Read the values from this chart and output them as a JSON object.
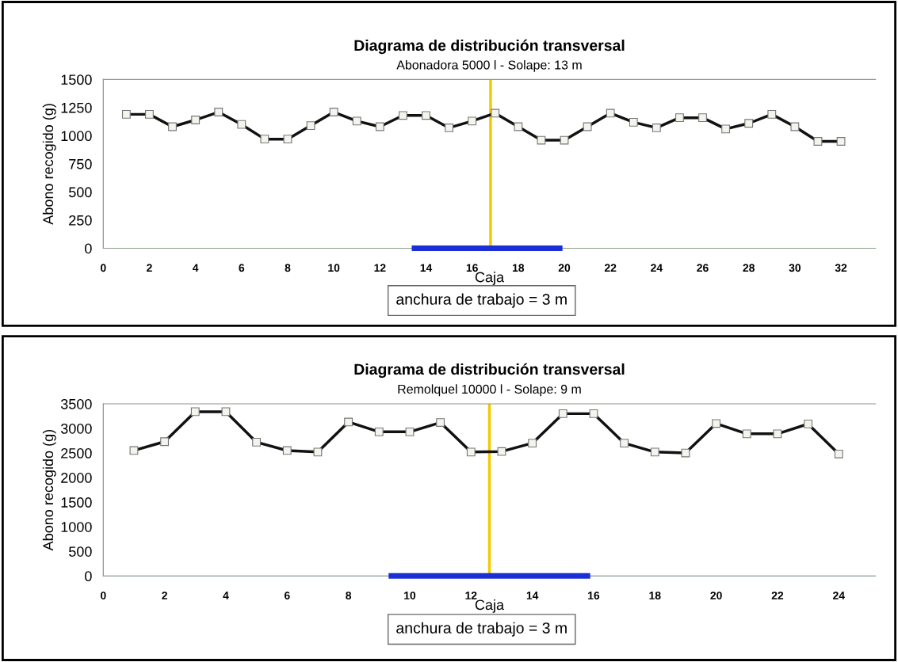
{
  "chart_data": [
    {
      "type": "line",
      "title": "Diagrama de distribución transversal",
      "subtitle": "Abonadora 5000 l - Solape: 13 m",
      "xlabel": "Caja",
      "ylabel": "Abono recogido (g)",
      "x": [
        1,
        2,
        3,
        4,
        5,
        6,
        7,
        8,
        9,
        10,
        11,
        12,
        13,
        14,
        15,
        16,
        17,
        18,
        19,
        20,
        21,
        22,
        23,
        24,
        25,
        26,
        27,
        28,
        29,
        30,
        31,
        32
      ],
      "series": [
        {
          "color": "#111111",
          "values": [
            1190,
            1190,
            1080,
            1140,
            1210,
            1100,
            970,
            970,
            1090,
            1210,
            1130,
            1080,
            1180,
            1180,
            1070,
            1130,
            1200,
            1080,
            960,
            960,
            1080,
            1200,
            1120,
            1070,
            1160,
            1160,
            1060,
            1110,
            1190,
            1080,
            950,
            950
          ]
        },
        {
          "type": "line",
          "x": [
            13.5,
            19.8
          ],
          "values": [
            0,
            0
          ],
          "color": "#1a2fd6",
          "marker": "none"
        }
      ],
      "marker": "square",
      "xlim": [
        0,
        33.5
      ],
      "xticks": [
        0,
        2,
        4,
        6,
        8,
        10,
        12,
        14,
        16,
        18,
        20,
        22,
        24,
        26,
        28,
        30,
        32
      ],
      "ylim": [
        0,
        1500
      ],
      "yticks": [
        0,
        250,
        500,
        750,
        1000,
        1250,
        1500
      ],
      "ref_lines": [
        {
          "axis": "x",
          "value": 16.8,
          "color": "#f5c800"
        }
      ],
      "annotations": [
        "anchura de trabajo = 3 m"
      ]
    },
    {
      "type": "line",
      "title": "Diagrama de distribución transversal",
      "subtitle": "Remolquel 10000 l - Solape: 9 m",
      "xlabel": "Caja",
      "ylabel": "Abono recogido (g)",
      "x": [
        1,
        2,
        3,
        4,
        5,
        6,
        7,
        8,
        9,
        10,
        11,
        12,
        13,
        14,
        15,
        16,
        17,
        18,
        19,
        20,
        21,
        22,
        23,
        24
      ],
      "series": [
        {
          "color": "#111111",
          "values": [
            2550,
            2730,
            3340,
            3340,
            2720,
            2550,
            2520,
            3130,
            2930,
            2930,
            3120,
            2520,
            2530,
            2700,
            3300,
            3300,
            2700,
            2520,
            2500,
            3100,
            2890,
            2890,
            3090,
            2480
          ]
        },
        {
          "type": "line",
          "x": [
            9.4,
            15.8
          ],
          "values": [
            0,
            0
          ],
          "color": "#1a2fd6",
          "marker": "none"
        }
      ],
      "marker": "square",
      "xlim": [
        0,
        25.2
      ],
      "xticks": [
        0,
        2,
        4,
        6,
        8,
        10,
        12,
        14,
        16,
        18,
        20,
        22,
        24
      ],
      "ylim": [
        0,
        3500
      ],
      "yticks": [
        0,
        500,
        1000,
        1500,
        2000,
        2500,
        3000,
        3500
      ],
      "ref_lines": [
        {
          "axis": "x",
          "value": 12.6,
          "color": "#f5c800"
        }
      ],
      "annotations": [
        "anchura de trabajo = 3 m"
      ]
    }
  ]
}
